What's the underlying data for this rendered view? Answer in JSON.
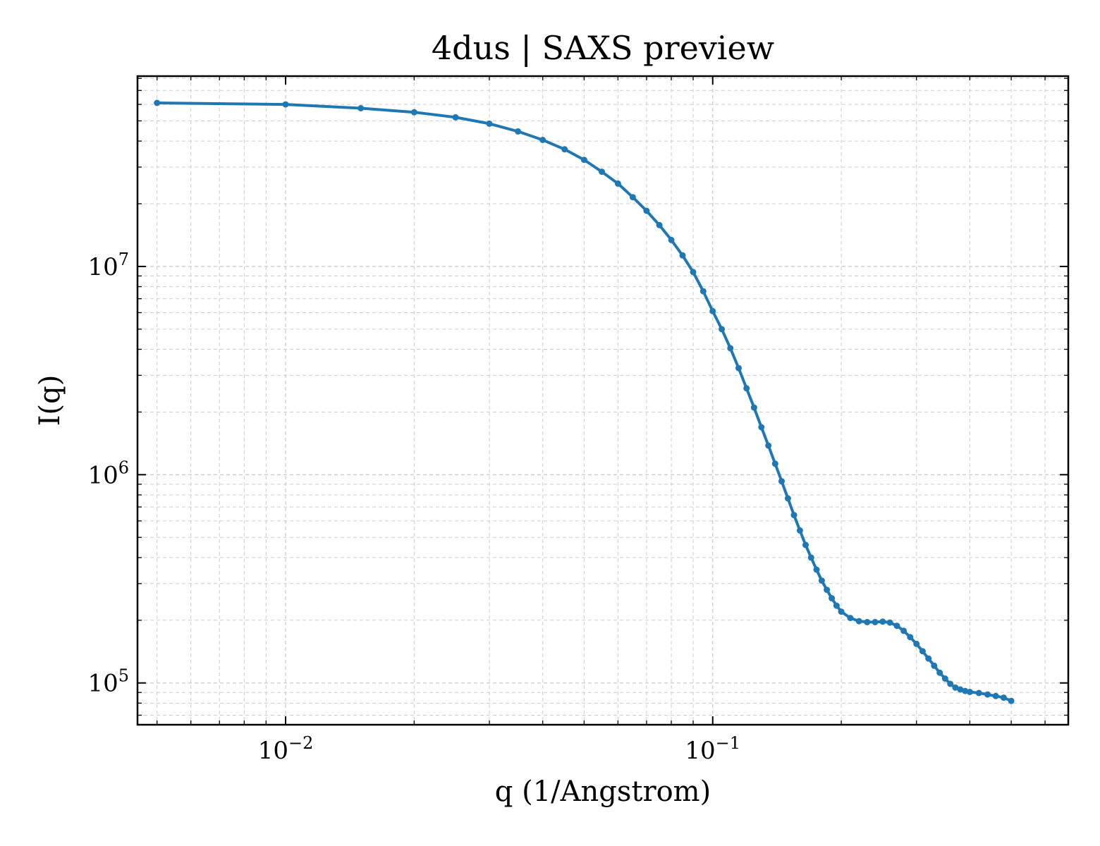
{
  "chart_data": {
    "type": "line",
    "title": "4dus | SAXS preview",
    "xlabel": "q (1/Angstrom)",
    "ylabel": "I(q)",
    "xscale": "log",
    "yscale": "log",
    "xlim": [
      0.0045,
      0.68
    ],
    "ylim": [
      63000,
      82000000
    ],
    "grid": true,
    "grid_style": "dashed",
    "series_color": "#1f77b4",
    "x_ticks": [
      {
        "value": 0.01,
        "base": "10",
        "exp": "−2"
      },
      {
        "value": 0.1,
        "base": "10",
        "exp": "−1"
      }
    ],
    "y_ticks": [
      {
        "value": 100000,
        "base": "10",
        "exp": "5"
      },
      {
        "value": 1000000,
        "base": "10",
        "exp": "6"
      },
      {
        "value": 10000000,
        "base": "10",
        "exp": "7"
      }
    ],
    "series": [
      {
        "x": [
          0.005,
          0.01,
          0.015,
          0.02,
          0.025,
          0.03,
          0.035,
          0.04,
          0.045,
          0.05,
          0.055,
          0.06,
          0.065,
          0.07,
          0.075,
          0.08,
          0.085,
          0.09,
          0.095,
          0.1,
          0.105,
          0.11,
          0.115,
          0.12,
          0.125,
          0.13,
          0.135,
          0.14,
          0.145,
          0.15,
          0.155,
          0.16,
          0.165,
          0.17,
          0.175,
          0.18,
          0.185,
          0.19,
          0.195,
          0.2,
          0.21,
          0.22,
          0.23,
          0.24,
          0.25,
          0.26,
          0.27,
          0.28,
          0.29,
          0.3,
          0.31,
          0.32,
          0.33,
          0.34,
          0.35,
          0.36,
          0.37,
          0.38,
          0.39,
          0.4,
          0.42,
          0.44,
          0.46,
          0.48,
          0.5
        ],
        "y": [
          61000000,
          60000000,
          57500000,
          55000000,
          52000000,
          48500000,
          44500000,
          40500000,
          36500000,
          32500000,
          28500000,
          25000000,
          21500000,
          18500000,
          15800000,
          13400000,
          11300000,
          9400000,
          7600000,
          6100000,
          5000000,
          4050000,
          3250000,
          2600000,
          2100000,
          1690000,
          1380000,
          1130000,
          930000,
          770000,
          640000,
          540000,
          460000,
          400000,
          350000,
          310000,
          280000,
          255000,
          235000,
          220000,
          205000,
          198000,
          196000,
          196000,
          197000,
          195000,
          188000,
          178000,
          166000,
          154000,
          142000,
          131000,
          121000,
          112000,
          105000,
          99000,
          95000,
          93000,
          91500,
          90500,
          89500,
          88000,
          86500,
          85000,
          82000
        ]
      }
    ]
  }
}
